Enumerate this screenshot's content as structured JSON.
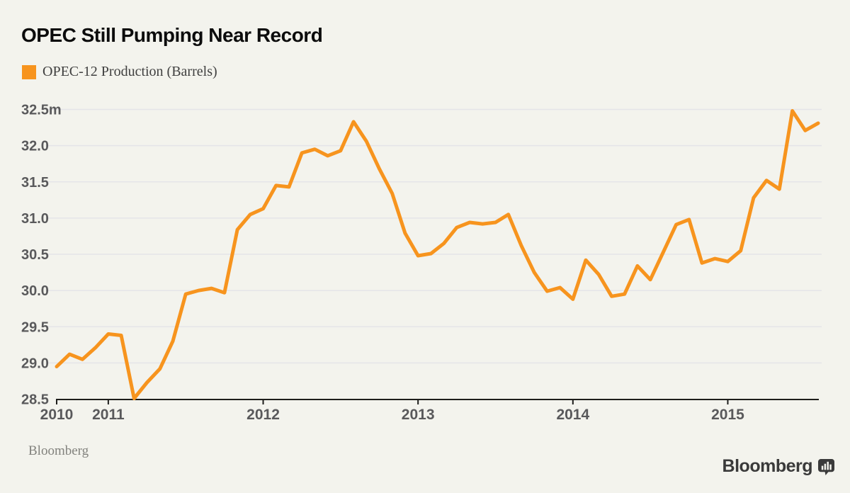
{
  "header": {
    "title": "OPEC Still Pumping Near Record"
  },
  "legend": {
    "label": "OPEC-12 Production (Barrels)",
    "swatch_color": "#f7941e"
  },
  "chart_data": {
    "type": "line",
    "title": "OPEC Still Pumping Near Record",
    "series_name": "OPEC-12 Production (Barrels)",
    "unit": "millions of barrels per day",
    "x": [
      "2010-09",
      "2010-10",
      "2010-11",
      "2010-12",
      "2011-01",
      "2011-02",
      "2011-03",
      "2011-04",
      "2011-05",
      "2011-06",
      "2011-07",
      "2011-08",
      "2011-09",
      "2011-10",
      "2011-11",
      "2011-12",
      "2012-01",
      "2012-02",
      "2012-03",
      "2012-04",
      "2012-05",
      "2012-06",
      "2012-07",
      "2012-08",
      "2012-09",
      "2012-10",
      "2012-11",
      "2012-12",
      "2013-01",
      "2013-02",
      "2013-03",
      "2013-04",
      "2013-05",
      "2013-06",
      "2013-07",
      "2013-08",
      "2013-09",
      "2013-10",
      "2013-11",
      "2013-12",
      "2014-01",
      "2014-02",
      "2014-03",
      "2014-04",
      "2014-05",
      "2014-06",
      "2014-07",
      "2014-08",
      "2014-09",
      "2014-10",
      "2014-11",
      "2014-12",
      "2015-01",
      "2015-02",
      "2015-03",
      "2015-04",
      "2015-05",
      "2015-06",
      "2015-07",
      "2015-08"
    ],
    "values": [
      28.95,
      29.12,
      29.05,
      29.21,
      29.4,
      29.38,
      28.51,
      28.73,
      28.92,
      29.3,
      29.95,
      30.0,
      30.03,
      29.97,
      30.84,
      31.05,
      31.13,
      31.45,
      31.43,
      31.9,
      31.95,
      31.86,
      31.93,
      32.33,
      32.06,
      31.68,
      31.34,
      30.79,
      30.48,
      30.51,
      30.65,
      30.87,
      30.94,
      30.92,
      30.94,
      31.05,
      30.62,
      30.25,
      29.99,
      30.04,
      29.88,
      30.42,
      30.22,
      29.92,
      29.95,
      30.34,
      30.15,
      30.53,
      30.91,
      30.98,
      30.38,
      30.44,
      30.4,
      30.55,
      31.28,
      31.52,
      31.4,
      32.48,
      32.21,
      32.31
    ],
    "ylim": [
      28.5,
      32.5
    ],
    "y_tick_step": 0.5,
    "y_tick_labels": [
      "32.5m",
      "32.0",
      "31.5",
      "31.0",
      "30.5",
      "30.0",
      "29.5",
      "29.0",
      "28.5"
    ],
    "x_tick_labels": [
      "2010",
      "2011",
      "2012",
      "2013",
      "2014",
      "2015"
    ],
    "x_tick_month_index": [
      0,
      4,
      16,
      28,
      40,
      52
    ],
    "line_color": "#f7941e",
    "grid": true,
    "gridline_color": "#e4e4e8",
    "axis_color": "#1d1d1b",
    "legend_position": "top-left"
  },
  "footer": {
    "source": "Bloomberg",
    "brand": "Bloomberg"
  }
}
